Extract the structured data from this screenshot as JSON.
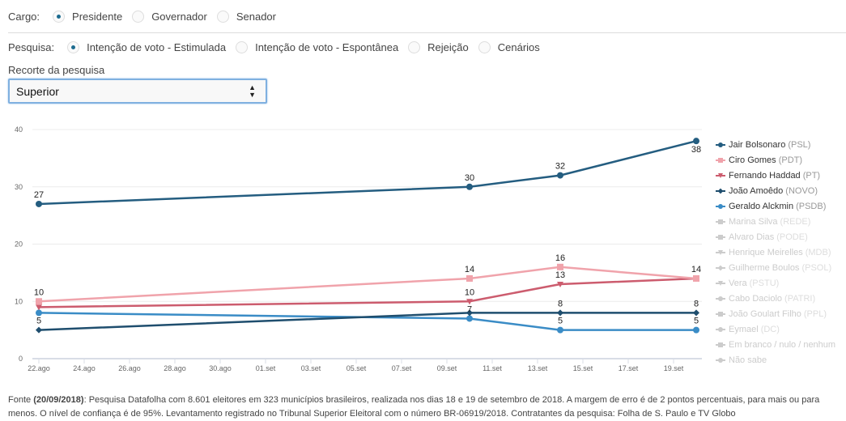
{
  "cargo": {
    "label": "Cargo:",
    "options": [
      {
        "label": "Presidente",
        "selected": true
      },
      {
        "label": "Governador",
        "selected": false
      },
      {
        "label": "Senador",
        "selected": false
      }
    ]
  },
  "pesquisa": {
    "label": "Pesquisa:",
    "options": [
      {
        "label": "Intenção de voto - Estimulada",
        "selected": true
      },
      {
        "label": "Intenção de voto - Espontânea",
        "selected": false
      },
      {
        "label": "Rejeição",
        "selected": false
      },
      {
        "label": "Cenários",
        "selected": false
      }
    ]
  },
  "recorte": {
    "label": "Recorte da pesquisa",
    "selected": "Superior"
  },
  "footer": {
    "prefix": "Fonte ",
    "date": "(20/09/2018)",
    "text": ": Pesquisa Datafolha com 8.601 eleitores em 323 municípios brasileiros, realizada nos dias 18 e 19 de setembro de 2018. A margem de erro é de 2 pontos percentuais, para mais ou para menos. O nível de confiança é de 95%. Levantamento registrado no Tribunal Superior Eleitoral com o número BR-06919/2018. Contratantes da pesquisa: Folha de S. Paulo e TV Globo"
  },
  "chart_data": {
    "type": "line",
    "title": "",
    "xlabel": "",
    "ylabel": "",
    "ylim": [
      0,
      40
    ],
    "yticks": [
      0,
      10,
      20,
      30,
      40
    ],
    "xticks": [
      "22.ago",
      "24.ago",
      "26.ago",
      "28.ago",
      "30.ago",
      "01.set",
      "03.set",
      "05.set",
      "07.set",
      "09.set",
      "11.set",
      "13.set",
      "15.set",
      "17.set",
      "19.set"
    ],
    "x": [
      "22.ago",
      "10.set",
      "14.set",
      "20.set"
    ],
    "x_day_offsets": [
      0,
      19,
      23,
      29
    ],
    "grid": true,
    "legend_position": "right",
    "series": [
      {
        "name": "Jair Bolsonaro",
        "party": "(PSL)",
        "color": "#245d80",
        "marker": "circle",
        "active": true,
        "values": [
          27,
          30,
          32,
          38
        ],
        "labels": [
          true,
          true,
          true,
          true
        ],
        "label_pos": "above"
      },
      {
        "name": "Ciro Gomes",
        "party": "(PDT)",
        "color": "#f0a3ab",
        "marker": "square",
        "active": true,
        "values": [
          10,
          14,
          16,
          14
        ],
        "labels": [
          true,
          true,
          true,
          true
        ],
        "label_pos": "above"
      },
      {
        "name": "Fernando Haddad",
        "party": "(PT)",
        "color": "#cc5c6e",
        "marker": "triangle",
        "active": true,
        "values": [
          9,
          10,
          13,
          14
        ],
        "labels": [
          false,
          true,
          true,
          false
        ],
        "label_pos": "above"
      },
      {
        "name": "João Amoêdo",
        "party": "(NOVO)",
        "color": "#1f4e6e",
        "marker": "diamond",
        "active": true,
        "values": [
          5,
          8,
          8,
          8
        ],
        "labels": [
          true,
          false,
          true,
          true
        ],
        "label_pos": "above"
      },
      {
        "name": "Geraldo Alckmin",
        "party": "(PSDB)",
        "color": "#3a8cc6",
        "marker": "circle",
        "active": true,
        "values": [
          8,
          7,
          5,
          5
        ],
        "labels": [
          false,
          true,
          true,
          true
        ],
        "label_pos": "above"
      },
      {
        "name": "Marina Silva",
        "party": "(REDE)",
        "color": "#cccccc",
        "marker": "square",
        "active": false,
        "values": []
      },
      {
        "name": "Alvaro Dias",
        "party": "(PODE)",
        "color": "#cccccc",
        "marker": "square",
        "active": false,
        "values": []
      },
      {
        "name": "Henrique Meirelles",
        "party": "(MDB)",
        "color": "#cccccc",
        "marker": "triangle",
        "active": false,
        "values": []
      },
      {
        "name": "Guilherme Boulos",
        "party": "(PSOL)",
        "color": "#cccccc",
        "marker": "diamond",
        "active": false,
        "values": []
      },
      {
        "name": "Vera",
        "party": "(PSTU)",
        "color": "#cccccc",
        "marker": "triangle",
        "active": false,
        "values": []
      },
      {
        "name": "Cabo Daciolo",
        "party": "(PATRI)",
        "color": "#cccccc",
        "marker": "circle",
        "active": false,
        "values": []
      },
      {
        "name": "João Goulart Filho",
        "party": "(PPL)",
        "color": "#cccccc",
        "marker": "square",
        "active": false,
        "values": []
      },
      {
        "name": "Eymael",
        "party": "(DC)",
        "color": "#cccccc",
        "marker": "circle",
        "active": false,
        "values": []
      },
      {
        "name": "Em branco / nulo / nenhum",
        "party": "",
        "color": "#cccccc",
        "marker": "square",
        "active": false,
        "values": []
      },
      {
        "name": "Não sabe",
        "party": "",
        "color": "#cccccc",
        "marker": "circle",
        "active": false,
        "values": []
      }
    ]
  }
}
